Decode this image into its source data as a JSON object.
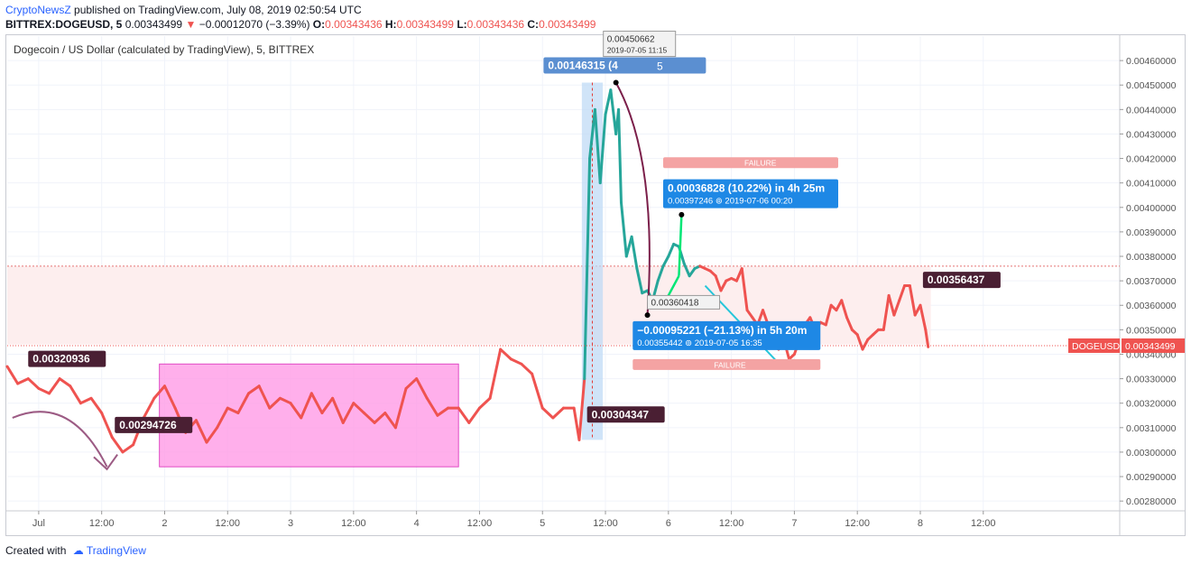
{
  "header": {
    "publisher": "CryptoNewsZ",
    "published_text": "published on TradingView.com, July 08, 2019 02:50:54 UTC",
    "symbol": "BITTREX:DOGEUSD, 5",
    "last": "0.00343499",
    "change_arrow": "▼",
    "change": "−0.00012070 (−3.39%)",
    "o_label": "O:",
    "o_value": "0.00343436",
    "h_label": "H:",
    "h_value": "0.00343499",
    "l_label": "L:",
    "l_value": "0.00343436",
    "c_label": "C:",
    "c_value": "0.00343499"
  },
  "footer": {
    "created_with": "Created with",
    "brand": "TradingView"
  },
  "colors": {
    "up": "#26a69a",
    "down": "#ef5350",
    "pink_zone": "#ff9be6",
    "label_dark": "#4a1f33",
    "label_blue": "#1e88e5",
    "failure": "#f4a3a3"
  },
  "chart_data": {
    "type": "line",
    "title": "Dogecoin / US Dollar (calculated by TradingView), 5, BITTREX",
    "series_name": "DOGEUSD",
    "current_price": 0.00343499,
    "current_price_label": "0.00343499",
    "ylim": [
      0.00276,
      0.0047
    ],
    "y_ticks": [
      0.0046,
      0.0045,
      0.0044,
      0.0043,
      0.0042,
      0.0041,
      0.004,
      0.0039,
      0.0038,
      0.0037,
      0.0036,
      0.0035,
      0.0034,
      0.0033,
      0.0032,
      0.0031,
      0.003,
      0.0029,
      0.0028
    ],
    "y_tick_labels": [
      "0.00460000",
      "0.00450000",
      "0.00440000",
      "0.00430000",
      "0.00420000",
      "0.00410000",
      "0.00400000",
      "0.00390000",
      "0.00380000",
      "0.00370000",
      "0.00360000",
      "0.00350000",
      "0.00340000",
      "0.00330000",
      "0.00320000",
      "0.00310000",
      "0.00300000",
      "0.00290000",
      "0.00280000"
    ],
    "x_axis_unit": "hours since Jul 1 00:00 UTC",
    "xlim": [
      -6,
      206
    ],
    "x_ticks": [
      {
        "t": 0,
        "label": "Jul"
      },
      {
        "t": 12,
        "label": "12:00"
      },
      {
        "t": 24,
        "label": "2"
      },
      {
        "t": 36,
        "label": "12:00"
      },
      {
        "t": 48,
        "label": "3"
      },
      {
        "t": 60,
        "label": "12:00"
      },
      {
        "t": 72,
        "label": "4"
      },
      {
        "t": 84,
        "label": "12:00"
      },
      {
        "t": 96,
        "label": "5"
      },
      {
        "t": 108,
        "label": "12:00"
      },
      {
        "t": 120,
        "label": "6"
      },
      {
        "t": 132,
        "label": "12:00"
      },
      {
        "t": 144,
        "label": "7"
      },
      {
        "t": 156,
        "label": "12:00"
      },
      {
        "t": 168,
        "label": "8"
      },
      {
        "t": 180,
        "label": "12:00"
      }
    ],
    "price_path": [
      [
        -6,
        0.00335
      ],
      [
        -4,
        0.00328
      ],
      [
        -2,
        0.0033
      ],
      [
        0,
        0.00326
      ],
      [
        2,
        0.00324
      ],
      [
        4,
        0.0033
      ],
      [
        6,
        0.00327
      ],
      [
        8,
        0.0032
      ],
      [
        10,
        0.00322
      ],
      [
        12,
        0.00316
      ],
      [
        14,
        0.00306
      ],
      [
        16,
        0.003
      ],
      [
        18,
        0.00303
      ],
      [
        20,
        0.00314
      ],
      [
        22,
        0.00322
      ],
      [
        24,
        0.00327
      ],
      [
        26,
        0.00318
      ],
      [
        28,
        0.00308
      ],
      [
        30,
        0.00313
      ],
      [
        32,
        0.00304
      ],
      [
        34,
        0.0031
      ],
      [
        36,
        0.00318
      ],
      [
        38,
        0.00316
      ],
      [
        40,
        0.00324
      ],
      [
        42,
        0.00327
      ],
      [
        44,
        0.00318
      ],
      [
        46,
        0.00322
      ],
      [
        48,
        0.0032
      ],
      [
        50,
        0.00314
      ],
      [
        52,
        0.00324
      ],
      [
        54,
        0.00316
      ],
      [
        56,
        0.00322
      ],
      [
        58,
        0.00312
      ],
      [
        60,
        0.0032
      ],
      [
        62,
        0.00316
      ],
      [
        64,
        0.00312
      ],
      [
        66,
        0.00316
      ],
      [
        68,
        0.0031
      ],
      [
        70,
        0.00326
      ],
      [
        72,
        0.0033
      ],
      [
        74,
        0.00322
      ],
      [
        76,
        0.00315
      ],
      [
        78,
        0.00318
      ],
      [
        80,
        0.00318
      ],
      [
        82,
        0.00312
      ],
      [
        84,
        0.00318
      ],
      [
        86,
        0.00322
      ],
      [
        88,
        0.00342
      ],
      [
        90,
        0.00338
      ],
      [
        92,
        0.00336
      ],
      [
        94,
        0.00332
      ],
      [
        96,
        0.00318
      ],
      [
        98,
        0.00314
      ],
      [
        100,
        0.00318
      ],
      [
        102,
        0.00318
      ],
      [
        103,
        0.00305
      ],
      [
        104,
        0.0033
      ],
      [
        105,
        0.0042
      ],
      [
        106,
        0.0044
      ],
      [
        107,
        0.0041
      ],
      [
        108,
        0.00438
      ],
      [
        109,
        0.00448
      ],
      [
        110,
        0.0043
      ],
      [
        110.5,
        0.0044
      ],
      [
        111,
        0.00402
      ],
      [
        112,
        0.0038
      ],
      [
        113,
        0.00388
      ],
      [
        114,
        0.00375
      ],
      [
        115,
        0.00365
      ],
      [
        116,
        0.00366
      ],
      [
        117,
        0.00362
      ],
      [
        118,
        0.0037
      ],
      [
        119,
        0.00376
      ],
      [
        120,
        0.0038
      ],
      [
        121,
        0.00385
      ],
      [
        122,
        0.00384
      ],
      [
        123,
        0.00377
      ],
      [
        124,
        0.00372
      ],
      [
        125,
        0.00375
      ],
      [
        126,
        0.00376
      ],
      [
        127,
        0.00375
      ],
      [
        128,
        0.00374
      ],
      [
        129,
        0.00372
      ],
      [
        130,
        0.00366
      ],
      [
        131,
        0.0037
      ],
      [
        132,
        0.00371
      ],
      [
        133,
        0.0037
      ],
      [
        134,
        0.00375
      ],
      [
        135,
        0.00358
      ],
      [
        136,
        0.00355
      ],
      [
        137,
        0.00352
      ],
      [
        138,
        0.00358
      ],
      [
        139,
        0.00352
      ],
      [
        140,
        0.00348
      ],
      [
        141,
        0.00342
      ],
      [
        142,
        0.00346
      ],
      [
        143,
        0.00338
      ],
      [
        144,
        0.0034
      ],
      [
        145,
        0.00346
      ],
      [
        146,
        0.00352
      ],
      [
        147,
        0.00355
      ],
      [
        148,
        0.0035
      ],
      [
        149,
        0.00353
      ],
      [
        150,
        0.00352
      ],
      [
        151,
        0.0036
      ],
      [
        152,
        0.00358
      ],
      [
        153,
        0.00362
      ],
      [
        154,
        0.00355
      ],
      [
        155,
        0.0035
      ],
      [
        156,
        0.00348
      ],
      [
        157,
        0.00342
      ],
      [
        158,
        0.00346
      ],
      [
        159,
        0.00348
      ],
      [
        160,
        0.0035
      ],
      [
        161,
        0.0035
      ],
      [
        162,
        0.00364
      ],
      [
        163,
        0.00356
      ],
      [
        164,
        0.00362
      ],
      [
        165,
        0.00368
      ],
      [
        166,
        0.00368
      ],
      [
        167,
        0.00356
      ],
      [
        168,
        0.0036
      ],
      [
        169,
        0.0035
      ],
      [
        169.5,
        0.00343
      ]
    ],
    "annotations": {
      "label_left_top": "0.00320936",
      "label_left_low": "0.00294726",
      "label_spike_low": "0.00304347",
      "label_right": "0.00356437",
      "spike_range": "0.00146315 (4",
      "spike_range_tail": "5",
      "peak_price": "0.00450662",
      "peak_time": "2019-07-05 11:15",
      "trough_price": "0.00360418",
      "up_measure": "0.00036828 (10.22%) in 4h 25m",
      "up_measure_sub": "0.00397246  ⊚ 2019-07-06  00:20",
      "down_measure": "−0.00095221 (−21.13%) in 5h 20m",
      "down_measure_sub": "0.00355442  ⊚ 2019-07-05  16:35",
      "failure_label": "FAILURE"
    }
  }
}
